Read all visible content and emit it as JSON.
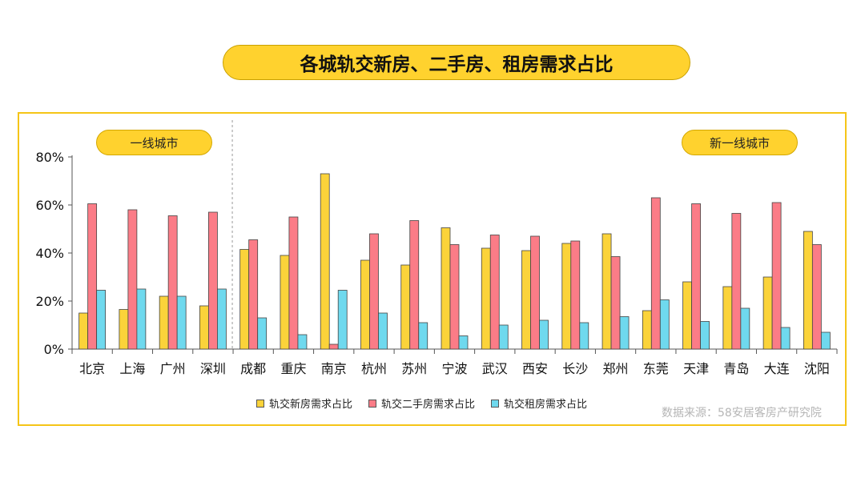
{
  "title": "各城轨交新房、二手房、租房需求占比",
  "group_labels": {
    "first_tier": "一线城市",
    "new_first_tier": "新一线城市"
  },
  "source": "数据来源：58安居客房产研究院",
  "colors": {
    "new_house": "#fbd33a",
    "second_hand": "#fb7c87",
    "rent": "#6fd9ee",
    "accent": "#ffd22e"
  },
  "chart_data": {
    "type": "bar",
    "categories": [
      "北京",
      "上海",
      "广州",
      "深圳",
      "成都",
      "重庆",
      "南京",
      "杭州",
      "苏州",
      "宁波",
      "武汉",
      "西安",
      "长沙",
      "郑州",
      "东莞",
      "天津",
      "青岛",
      "大连",
      "沈阳"
    ],
    "series": [
      {
        "name": "轨交新房需求占比",
        "values": [
          15,
          16.5,
          22,
          18,
          41.5,
          39,
          73,
          37,
          35,
          50.5,
          42,
          41,
          44,
          48,
          16,
          28,
          26,
          30,
          49
        ]
      },
      {
        "name": "轨交二手房需求占比",
        "values": [
          60.5,
          58,
          55.5,
          57,
          45.5,
          55,
          2,
          48,
          53.5,
          43.5,
          47.5,
          47,
          45,
          38.5,
          63,
          60.5,
          56.5,
          61,
          43.5
        ]
      },
      {
        "name": "轨交租房需求占比",
        "values": [
          24.5,
          25,
          22,
          25,
          13,
          6,
          24.5,
          15,
          11,
          5.5,
          10,
          12,
          11,
          13.5,
          20.5,
          11.5,
          17,
          9,
          7
        ]
      }
    ],
    "yticks": [
      "0%",
      "20%",
      "40%",
      "60%",
      "80%"
    ],
    "ylim": [
      0,
      80
    ],
    "grid": false,
    "legend_position": "bottom"
  }
}
